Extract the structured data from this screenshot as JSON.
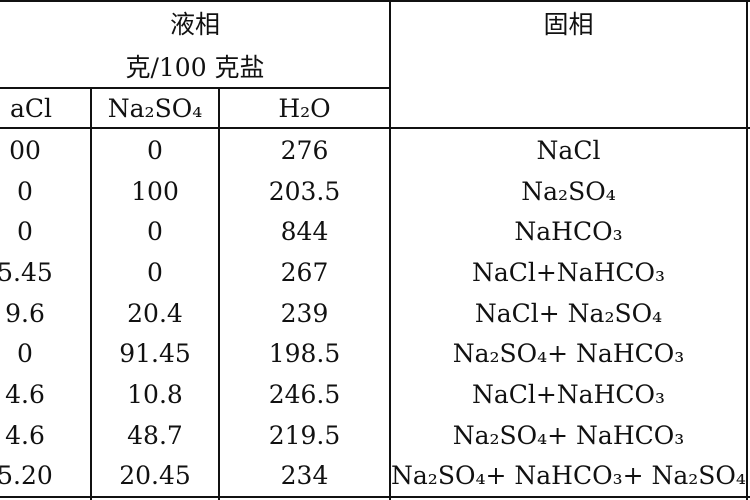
{
  "header": {
    "liquid_phase": "液相",
    "unit": "克/100 克盐",
    "solid_phase": "固相",
    "col_nacl": "aCl",
    "col_na2so4": "Na₂SO₄",
    "col_h2o": "H₂O"
  },
  "rows": [
    {
      "nacl": "00",
      "na2so4": "0",
      "h2o": "276",
      "solid": "NaCl"
    },
    {
      "nacl": "0",
      "na2so4": "100",
      "h2o": "203.5",
      "solid": "Na₂SO₄"
    },
    {
      "nacl": "0",
      "na2so4": "0",
      "h2o": "844",
      "solid": "NaHCO₃"
    },
    {
      "nacl": "5.45",
      "na2so4": "0",
      "h2o": "267",
      "solid": "NaCl+NaHCO₃"
    },
    {
      "nacl": "9.6",
      "na2so4": "20.4",
      "h2o": "239",
      "solid": "NaCl+ Na₂SO₄"
    },
    {
      "nacl": "0",
      "na2so4": "91.45",
      "h2o": "198.5",
      "solid": "Na₂SO₄+ NaHCO₃"
    },
    {
      "nacl": "4.6",
      "na2so4": "10.8",
      "h2o": "246.5",
      "solid": "NaCl+NaHCO₃"
    },
    {
      "nacl": "4.6",
      "na2so4": "48.7",
      "h2o": "219.5",
      "solid": "Na₂SO₄+ NaHCO₃"
    },
    {
      "nacl": "5.20",
      "na2so4": "20.45",
      "h2o": "234",
      "solid": "Na₂SO₄+ NaHCO₃+ Na₂SO₄"
    }
  ]
}
